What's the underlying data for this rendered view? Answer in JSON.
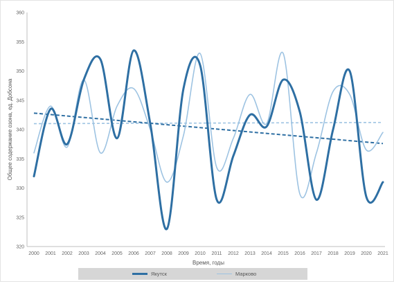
{
  "chart_data": {
    "type": "line",
    "title": "",
    "xlabel": "Время, годы",
    "ylabel": "Общее содержание озона, ед. Добсона",
    "ylim": [
      320,
      360
    ],
    "yticks": [
      320,
      325,
      330,
      335,
      340,
      345,
      350,
      355,
      360
    ],
    "x": [
      "2000",
      "2001",
      "2002",
      "2003",
      "2004",
      "2005",
      "2006",
      "2007",
      "2008",
      "2009",
      "2010",
      "2011",
      "2012",
      "2013",
      "2014",
      "2015",
      "2016",
      "2017",
      "2018",
      "2019",
      "2020",
      "2021"
    ],
    "grid": false,
    "legend_position": "bottom",
    "series": [
      {
        "name": "Якутск",
        "color": "#2e6fa3",
        "values": [
          332.0,
          343.5,
          337.5,
          348.5,
          352.0,
          338.5,
          353.5,
          341.0,
          323.0,
          347.0,
          351.0,
          328.0,
          335.5,
          342.5,
          340.5,
          348.5,
          343.0,
          328.0,
          340.0,
          350.0,
          328.5,
          331.0
        ],
        "trend": [
          342.8,
          337.6
        ]
      },
      {
        "name": "Марково",
        "color": "#9dc3e2",
        "values": [
          336.0,
          344.0,
          337.0,
          348.5,
          336.0,
          344.0,
          347.0,
          340.0,
          331.0,
          339.0,
          353.0,
          333.5,
          338.5,
          346.0,
          341.0,
          353.0,
          329.0,
          336.0,
          346.5,
          346.0,
          336.5,
          339.5
        ],
        "trend": [
          341.0,
          341.2
        ]
      }
    ]
  }
}
